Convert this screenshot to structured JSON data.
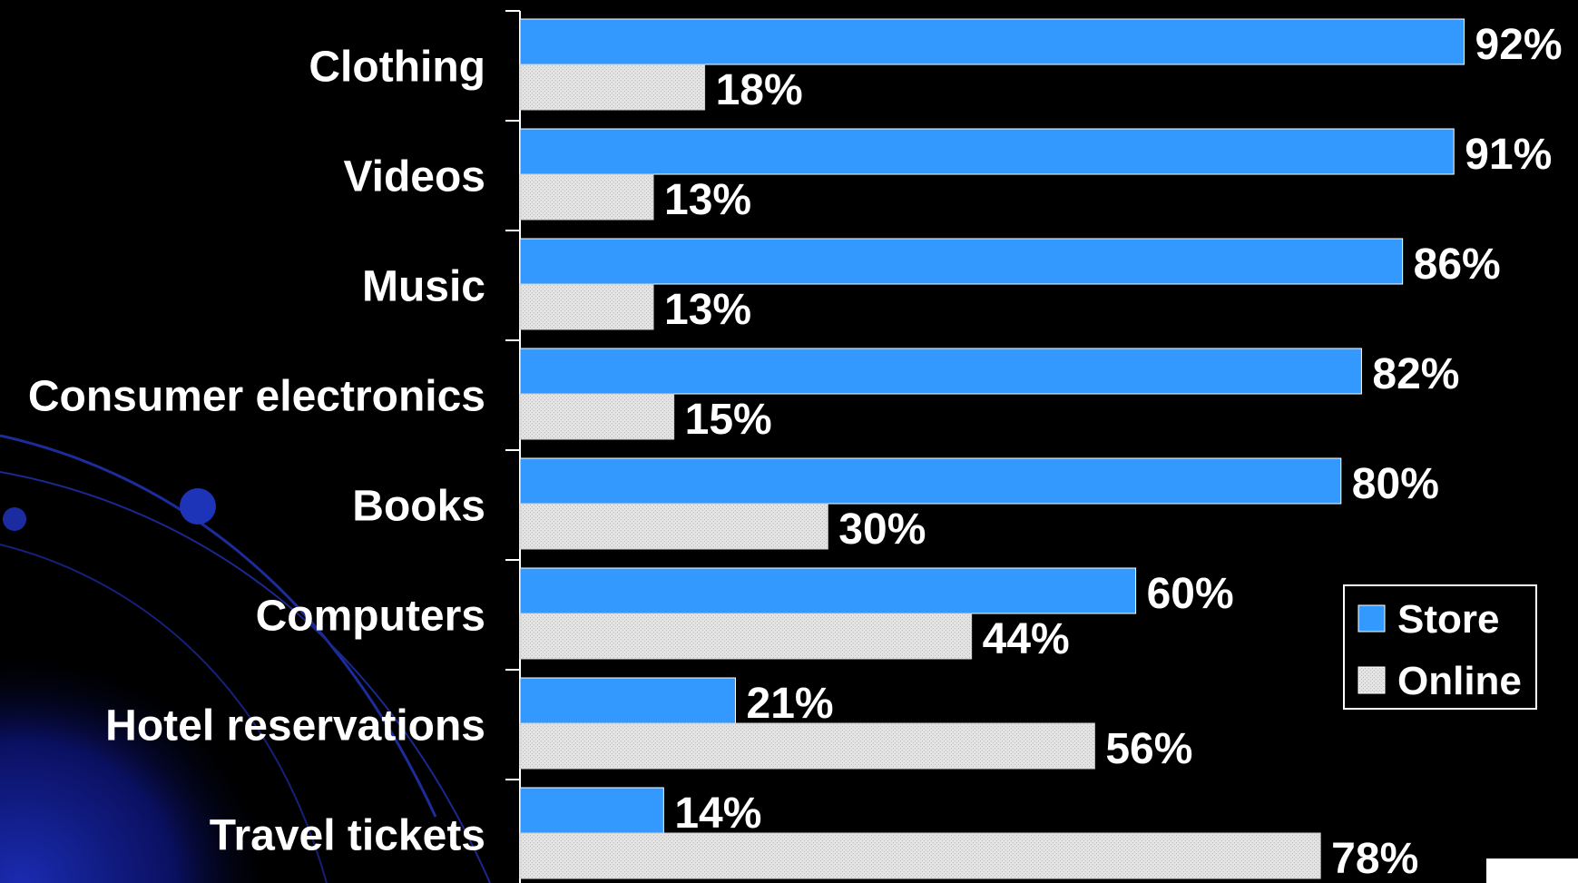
{
  "chart_data": {
    "type": "bar",
    "orientation": "horizontal",
    "categories": [
      "Clothing",
      "Videos",
      "Music",
      "Consumer electronics",
      "Books",
      "Computers",
      "Hotel reservations",
      "Travel tickets"
    ],
    "series": [
      {
        "name": "Store",
        "values": [
          92,
          91,
          86,
          82,
          80,
          60,
          21,
          14
        ],
        "labels": [
          "92%",
          "91%",
          "86%",
          "82%",
          "80%",
          "60%",
          "21%",
          "14%"
        ],
        "color": "#3399ff"
      },
      {
        "name": "Online",
        "values": [
          18,
          13,
          13,
          15,
          30,
          44,
          56,
          78
        ],
        "labels": [
          "18%",
          "13%",
          "13%",
          "15%",
          "30%",
          "44%",
          "56%",
          "78%"
        ],
        "color": "#e0e0e0"
      }
    ],
    "xlim": [
      0,
      100
    ],
    "grid": false,
    "legend_position": "right"
  },
  "colors": {
    "background": "#000000",
    "store": "#3399ff",
    "online": "#e0e0e0",
    "text": "#ffffff"
  }
}
